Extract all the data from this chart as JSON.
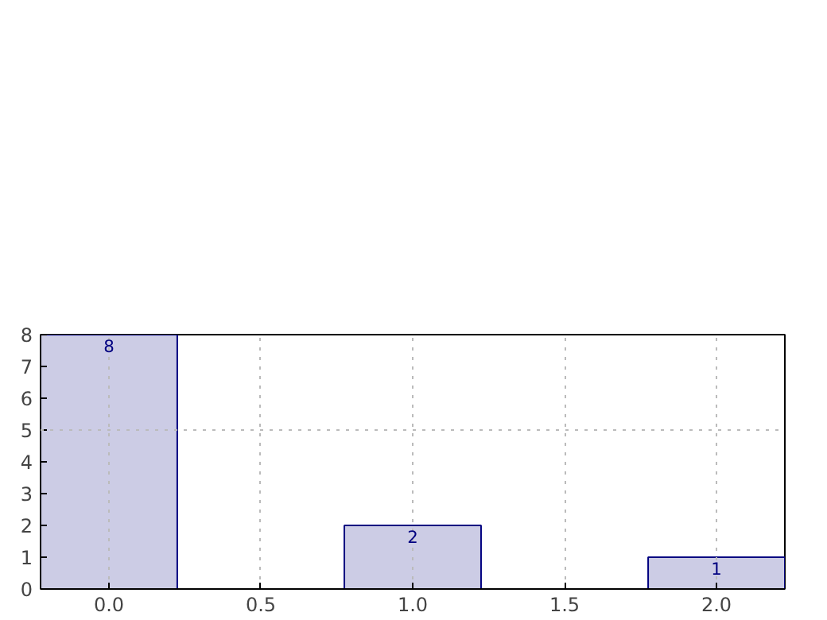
{
  "chart_data": {
    "type": "bar",
    "x": [
      0,
      1,
      2
    ],
    "values": [
      8,
      2,
      1
    ],
    "color": "#cccce5",
    "data_labels": true,
    "xlim": [
      -0.225,
      2.225
    ],
    "ylim": [
      0,
      8
    ],
    "xticks": [
      {
        "value": 0,
        "label": "0.0"
      },
      {
        "value": 0.5,
        "label": "0.5"
      },
      {
        "value": 1,
        "label": "1.0"
      },
      {
        "value": 1.5,
        "label": "1.5"
      },
      {
        "value": 2,
        "label": "2.0"
      }
    ],
    "yticks": [
      0,
      1,
      2,
      3,
      4,
      5,
      6,
      7,
      8
    ],
    "grid": "x",
    "ref_lines": [
      {
        "axis": "y",
        "value": 5,
        "label": null,
        "color": "#bbbbbb",
        "line_style": "dotted"
      }
    ]
  }
}
